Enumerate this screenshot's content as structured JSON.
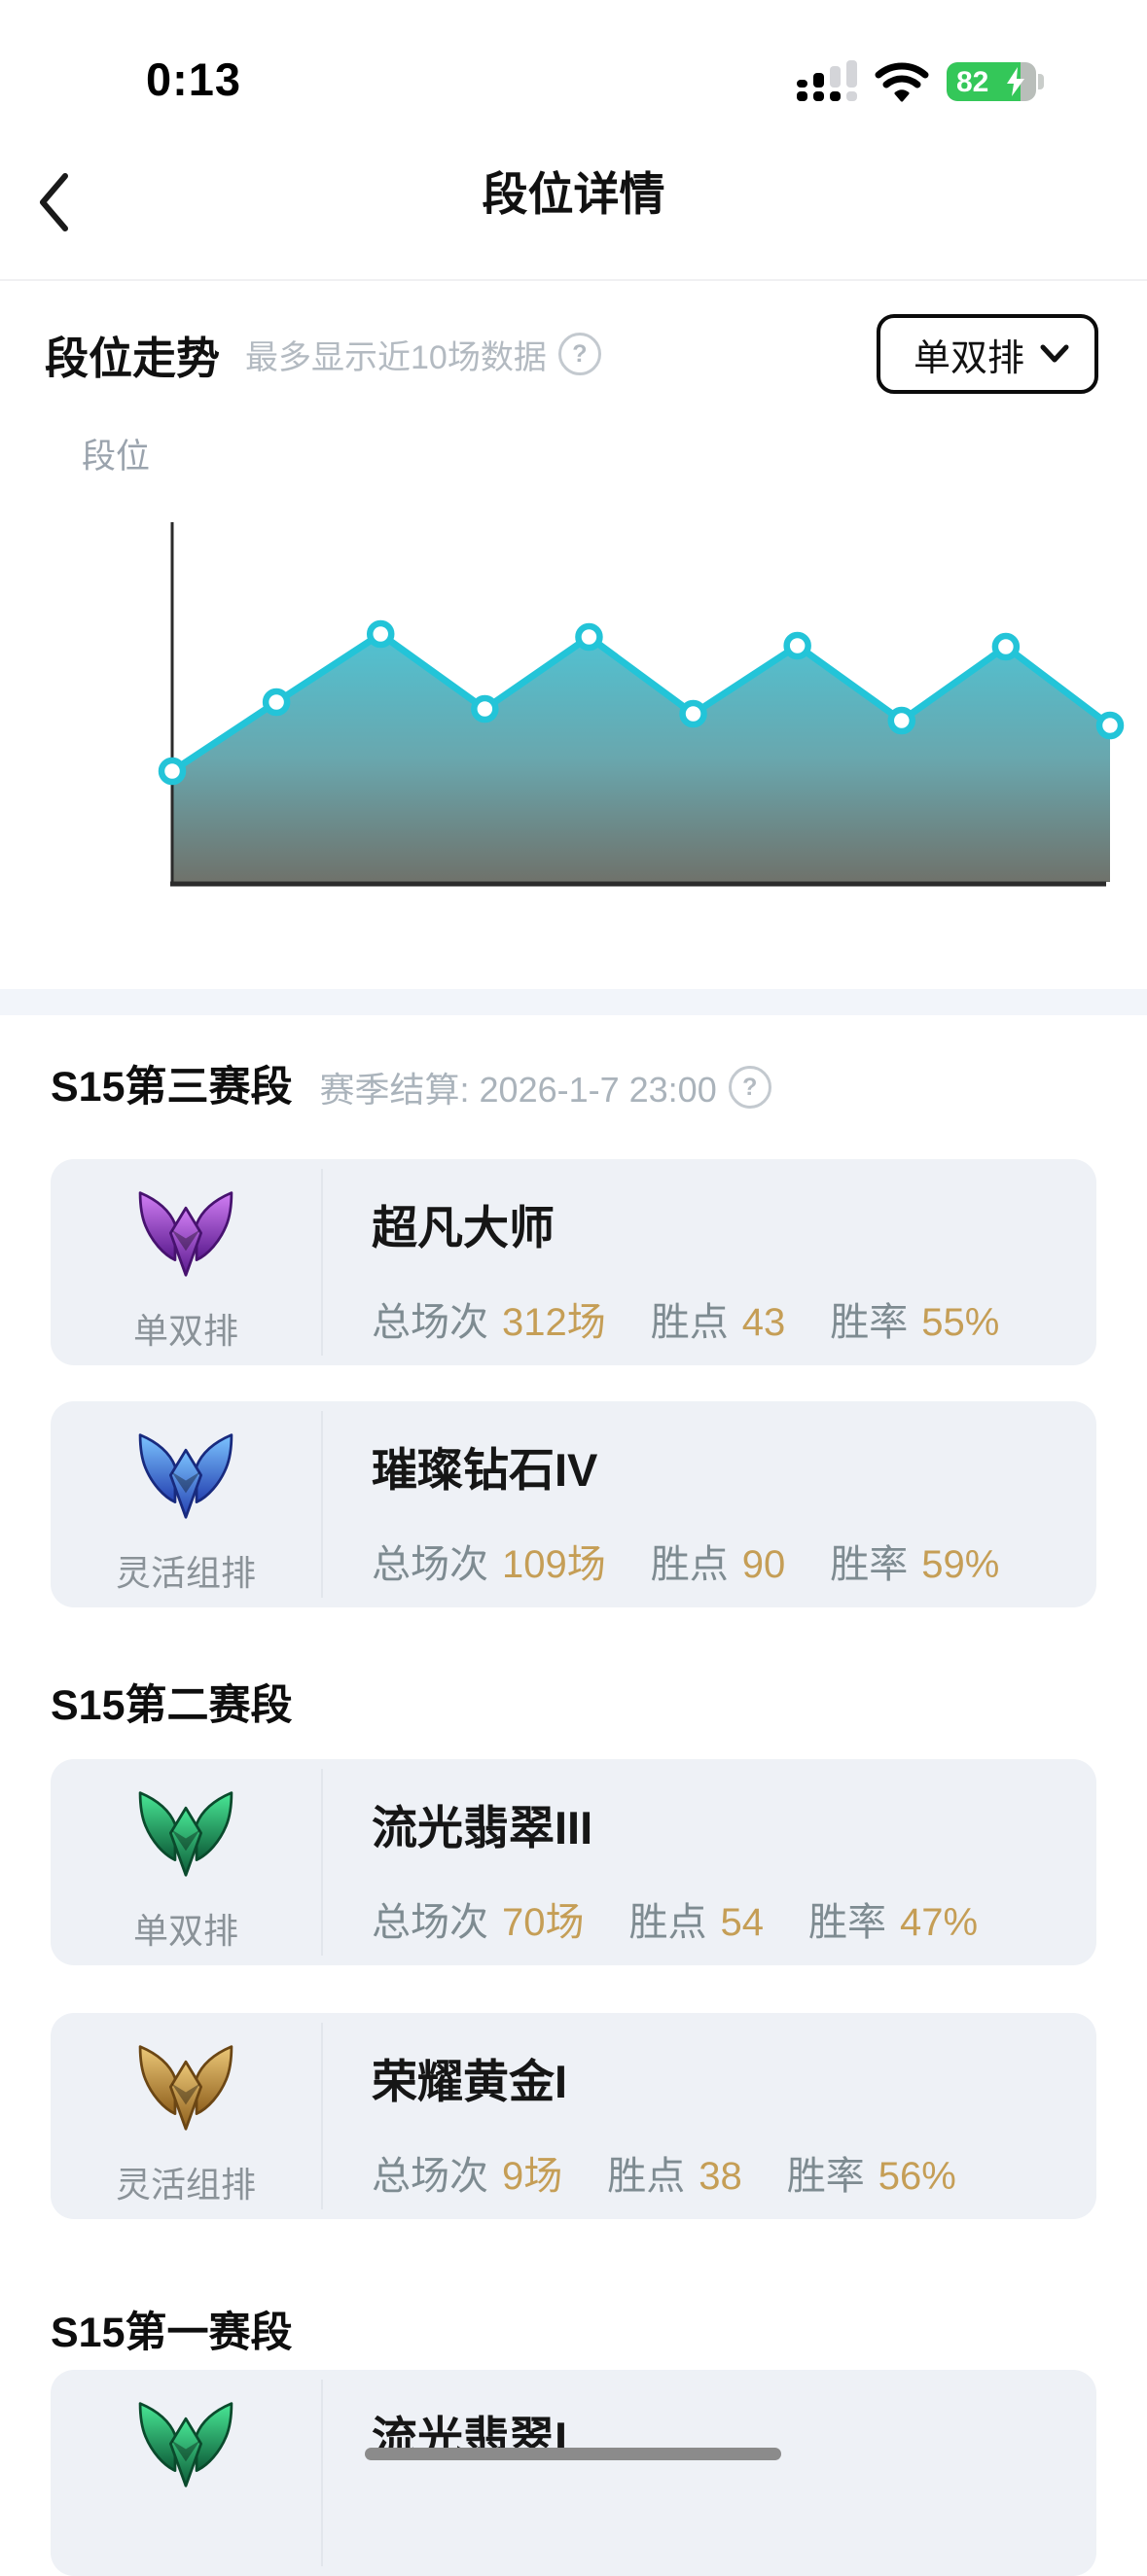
{
  "status_bar": {
    "time": "0:13",
    "battery_percent": "82",
    "battery_charging": true
  },
  "nav": {
    "title": "段位详情"
  },
  "trend": {
    "title": "段位走势",
    "hint": "最多显示近10场数据",
    "help_glyph": "?",
    "filter_label": "单双排",
    "y_axis_label": "段位"
  },
  "chart_data": {
    "type": "area",
    "title": "段位走势",
    "ylabel": "段位",
    "x": [
      1,
      2,
      3,
      4,
      5,
      6,
      7,
      8,
      9,
      10
    ],
    "values": [
      114,
      185,
      255,
      178,
      252,
      173,
      243,
      166,
      242,
      161
    ],
    "values_unit": "relative height above baseline (no tick labels shown)",
    "x_ticks": [],
    "y_ticks": [],
    "grid": false,
    "legend": false,
    "line_color": "#23c4d8",
    "marker_fill": "#ffffff",
    "axis_color": "#2b2b2b",
    "fill_gradient": [
      "#50c2d2",
      "#69a7ae",
      "#6f726b"
    ]
  },
  "stats_labels": {
    "matches": "总场次",
    "points": "胜点",
    "rate": "胜率"
  },
  "sections": [
    {
      "title": "S15第三赛段",
      "subtitle": "赛季结算: 2026-1-7 23:00",
      "cards": [
        {
          "queue": "单双排",
          "tier": "master",
          "rank": "超凡大师",
          "matches": "312场",
          "points": "43",
          "rate": "55%"
        },
        {
          "queue": "灵活组排",
          "tier": "diamond",
          "rank": "璀璨钻石IV",
          "matches": "109场",
          "points": "90",
          "rate": "59%"
        }
      ]
    },
    {
      "title": "S15第二赛段",
      "cards": [
        {
          "queue": "单双排",
          "tier": "emerald",
          "rank": "流光翡翠III",
          "matches": "70场",
          "points": "54",
          "rate": "47%"
        },
        {
          "queue": "灵活组排",
          "tier": "gold",
          "rank": "荣耀黄金I",
          "matches": "9场",
          "points": "38",
          "rate": "56%"
        }
      ]
    },
    {
      "title": "S15第一赛段",
      "cards": [
        {
          "tier": "emerald",
          "rank": "流光翡翠I"
        }
      ]
    }
  ],
  "colors": {
    "accent_gold": "#c59e56",
    "label_gray": "#7e8b91",
    "card_bg": "#eef1f6",
    "line_cyan": "#23c4d8",
    "battery_green": "#34c759"
  }
}
